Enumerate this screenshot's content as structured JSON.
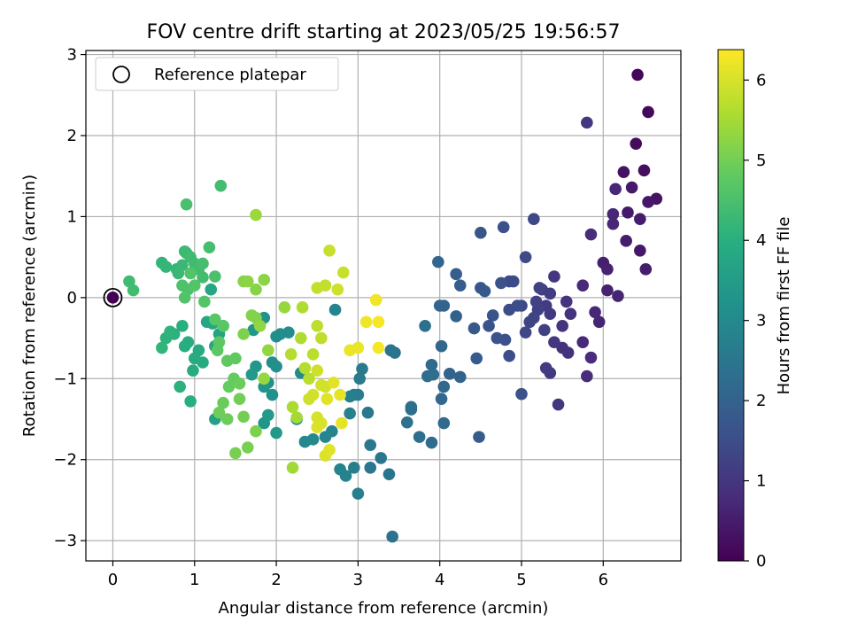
{
  "chart_data": {
    "type": "scatter",
    "title": "FOV centre drift starting at 2023/05/25 19:56:57",
    "xlabel": "Angular distance from reference (arcmin)",
    "ylabel": "Rotation from reference (arcmin)",
    "xlim": [
      -0.33,
      6.95
    ],
    "ylim": [
      -3.25,
      3.05
    ],
    "xticks": [
      0,
      1,
      2,
      3,
      4,
      5,
      6
    ],
    "yticks": [
      -3,
      -2,
      -1,
      0,
      1,
      2,
      3
    ],
    "grid": true,
    "legend": {
      "placement": "top-left",
      "entries": [
        "Reference platepar"
      ]
    },
    "colorbar": {
      "label": "Hours from first FF file",
      "range": [
        0,
        6.38
      ],
      "ticks": [
        0,
        1,
        2,
        3,
        4,
        5,
        6
      ],
      "colormap": "viridis"
    },
    "reference_point": {
      "x": 0,
      "y": 0,
      "label": "Reference platepar"
    },
    "points": [
      {
        "x": 0.0,
        "y": 0.0,
        "c": 0.0
      },
      {
        "x": 6.42,
        "y": 2.75,
        "c": 0.1
      },
      {
        "x": 6.55,
        "y": 2.29,
        "c": 0.15
      },
      {
        "x": 6.4,
        "y": 1.9,
        "c": 0.2
      },
      {
        "x": 6.5,
        "y": 1.57,
        "c": 0.25
      },
      {
        "x": 6.25,
        "y": 1.55,
        "c": 0.3
      },
      {
        "x": 6.65,
        "y": 1.22,
        "c": 0.35
      },
      {
        "x": 6.55,
        "y": 1.18,
        "c": 0.4
      },
      {
        "x": 6.35,
        "y": 1.36,
        "c": 0.45
      },
      {
        "x": 6.3,
        "y": 1.05,
        "c": 0.45
      },
      {
        "x": 6.45,
        "y": 0.97,
        "c": 0.5
      },
      {
        "x": 6.28,
        "y": 0.7,
        "c": 0.5
      },
      {
        "x": 6.45,
        "y": 0.58,
        "c": 0.4
      },
      {
        "x": 6.52,
        "y": 0.35,
        "c": 0.5
      },
      {
        "x": 6.0,
        "y": 0.43,
        "c": 0.55
      },
      {
        "x": 6.05,
        "y": 0.35,
        "c": 0.6
      },
      {
        "x": 6.05,
        "y": 0.09,
        "c": 0.6
      },
      {
        "x": 6.18,
        "y": 0.02,
        "c": 0.65
      },
      {
        "x": 5.95,
        "y": -0.3,
        "c": 0.65
      },
      {
        "x": 5.9,
        "y": -0.18,
        "c": 0.7
      },
      {
        "x": 5.75,
        "y": -0.55,
        "c": 0.75
      },
      {
        "x": 5.85,
        "y": -0.74,
        "c": 0.8
      },
      {
        "x": 5.75,
        "y": 0.15,
        "c": 0.75
      },
      {
        "x": 5.85,
        "y": 0.78,
        "c": 0.8
      },
      {
        "x": 5.8,
        "y": 2.16,
        "c": 1.0
      },
      {
        "x": 6.15,
        "y": 1.34,
        "c": 0.7
      },
      {
        "x": 5.8,
        "y": -0.97,
        "c": 0.8
      },
      {
        "x": 6.12,
        "y": 0.91,
        "c": 0.7
      },
      {
        "x": 6.12,
        "y": 1.03,
        "c": 0.7
      },
      {
        "x": 5.6,
        "y": -0.2,
        "c": 0.9
      },
      {
        "x": 5.57,
        "y": -0.68,
        "c": 0.9
      },
      {
        "x": 5.5,
        "y": -0.62,
        "c": 0.9
      },
      {
        "x": 5.45,
        "y": -1.32,
        "c": 1.0
      },
      {
        "x": 5.5,
        "y": -0.35,
        "c": 0.95
      },
      {
        "x": 5.55,
        "y": -0.05,
        "c": 0.95
      },
      {
        "x": 5.4,
        "y": 0.26,
        "c": 1.0
      },
      {
        "x": 5.4,
        "y": -0.55,
        "c": 1.0
      },
      {
        "x": 5.35,
        "y": -0.2,
        "c": 1.05
      },
      {
        "x": 5.35,
        "y": -0.93,
        "c": 1.05
      },
      {
        "x": 5.3,
        "y": -0.87,
        "c": 1.1
      },
      {
        "x": 5.3,
        "y": -0.1,
        "c": 1.1
      },
      {
        "x": 5.35,
        "y": 0.05,
        "c": 1.15
      },
      {
        "x": 5.25,
        "y": 0.1,
        "c": 1.15
      },
      {
        "x": 5.28,
        "y": -0.4,
        "c": 1.2
      },
      {
        "x": 5.2,
        "y": -0.15,
        "c": 1.2
      },
      {
        "x": 5.18,
        "y": -0.05,
        "c": 1.25
      },
      {
        "x": 5.22,
        "y": 0.12,
        "c": 1.25
      },
      {
        "x": 5.15,
        "y": -0.25,
        "c": 1.3
      },
      {
        "x": 5.1,
        "y": -0.3,
        "c": 1.3
      },
      {
        "x": 5.05,
        "y": -0.43,
        "c": 1.35
      },
      {
        "x": 5.15,
        "y": 0.97,
        "c": 1.35
      },
      {
        "x": 5.0,
        "y": -0.1,
        "c": 1.4
      },
      {
        "x": 5.05,
        "y": 0.5,
        "c": 1.4
      },
      {
        "x": 4.9,
        "y": 0.2,
        "c": 1.45
      },
      {
        "x": 4.85,
        "y": 0.2,
        "c": 1.45
      },
      {
        "x": 4.95,
        "y": -0.1,
        "c": 1.5
      },
      {
        "x": 4.85,
        "y": -0.15,
        "c": 1.5
      },
      {
        "x": 4.8,
        "y": -0.52,
        "c": 1.55
      },
      {
        "x": 4.78,
        "y": 0.87,
        "c": 1.55
      },
      {
        "x": 4.75,
        "y": 0.18,
        "c": 1.6
      },
      {
        "x": 4.7,
        "y": -0.5,
        "c": 1.6
      },
      {
        "x": 4.65,
        "y": -0.22,
        "c": 1.65
      },
      {
        "x": 4.6,
        "y": -0.35,
        "c": 1.65
      },
      {
        "x": 4.5,
        "y": 0.8,
        "c": 1.7
      },
      {
        "x": 4.5,
        "y": 0.12,
        "c": 1.7
      },
      {
        "x": 4.55,
        "y": 0.08,
        "c": 1.75
      },
      {
        "x": 4.45,
        "y": -0.75,
        "c": 1.8
      },
      {
        "x": 4.48,
        "y": -1.72,
        "c": 1.85
      },
      {
        "x": 5.0,
        "y": -1.19,
        "c": 1.6
      },
      {
        "x": 4.85,
        "y": -0.72,
        "c": 1.5
      },
      {
        "x": 4.42,
        "y": -0.38,
        "c": 1.75
      },
      {
        "x": 4.25,
        "y": 0.15,
        "c": 1.9
      },
      {
        "x": 4.2,
        "y": 0.29,
        "c": 1.9
      },
      {
        "x": 4.2,
        "y": -0.23,
        "c": 1.95
      },
      {
        "x": 4.25,
        "y": -0.98,
        "c": 2.0
      },
      {
        "x": 4.12,
        "y": -0.94,
        "c": 2.0
      },
      {
        "x": 4.05,
        "y": -0.1,
        "c": 2.05
      },
      {
        "x": 4.0,
        "y": -0.1,
        "c": 2.05
      },
      {
        "x": 3.98,
        "y": 0.44,
        "c": 2.1
      },
      {
        "x": 4.02,
        "y": -0.6,
        "c": 2.1
      },
      {
        "x": 4.05,
        "y": -1.1,
        "c": 2.15
      },
      {
        "x": 4.02,
        "y": -1.25,
        "c": 2.15
      },
      {
        "x": 4.05,
        "y": -1.55,
        "c": 2.2
      },
      {
        "x": 3.9,
        "y": -0.83,
        "c": 2.2
      },
      {
        "x": 3.9,
        "y": -1.79,
        "c": 2.25
      },
      {
        "x": 3.85,
        "y": -0.97,
        "c": 2.25
      },
      {
        "x": 3.82,
        "y": -0.35,
        "c": 2.3
      },
      {
        "x": 3.75,
        "y": -1.72,
        "c": 2.3
      },
      {
        "x": 3.92,
        "y": -0.95,
        "c": 2.3
      },
      {
        "x": 3.65,
        "y": -1.35,
        "c": 2.35
      },
      {
        "x": 3.65,
        "y": -1.38,
        "c": 2.35
      },
      {
        "x": 3.6,
        "y": -1.54,
        "c": 2.4
      },
      {
        "x": 3.45,
        "y": -0.68,
        "c": 2.4
      },
      {
        "x": 3.4,
        "y": -0.65,
        "c": 2.45
      },
      {
        "x": 3.42,
        "y": -2.95,
        "c": 2.4
      },
      {
        "x": 3.38,
        "y": -2.18,
        "c": 2.45
      },
      {
        "x": 3.28,
        "y": -1.98,
        "c": 2.5
      },
      {
        "x": 3.15,
        "y": -2.1,
        "c": 2.5
      },
      {
        "x": 3.15,
        "y": -1.82,
        "c": 2.55
      },
      {
        "x": 3.12,
        "y": -1.42,
        "c": 2.55
      },
      {
        "x": 3.05,
        "y": -0.88,
        "c": 2.6
      },
      {
        "x": 3.02,
        "y": -1.0,
        "c": 2.6
      },
      {
        "x": 3.0,
        "y": -1.2,
        "c": 2.65
      },
      {
        "x": 2.95,
        "y": -1.2,
        "c": 2.65
      },
      {
        "x": 3.0,
        "y": -2.42,
        "c": 2.7
      },
      {
        "x": 2.95,
        "y": -2.1,
        "c": 2.7
      },
      {
        "x": 2.9,
        "y": -1.22,
        "c": 2.75
      },
      {
        "x": 2.9,
        "y": -1.43,
        "c": 2.75
      },
      {
        "x": 2.85,
        "y": -2.2,
        "c": 2.8
      },
      {
        "x": 2.78,
        "y": -2.12,
        "c": 2.8
      },
      {
        "x": 2.68,
        "y": -1.65,
        "c": 2.85
      },
      {
        "x": 2.72,
        "y": -0.15,
        "c": 2.85
      },
      {
        "x": 2.6,
        "y": -1.72,
        "c": 2.9
      },
      {
        "x": 2.45,
        "y": -1.75,
        "c": 2.95
      },
      {
        "x": 2.35,
        "y": -1.78,
        "c": 2.95
      },
      {
        "x": 2.25,
        "y": -1.5,
        "c": 3.0
      },
      {
        "x": 2.3,
        "y": -0.93,
        "c": 3.0
      },
      {
        "x": 2.15,
        "y": -0.43,
        "c": 3.05
      },
      {
        "x": 2.05,
        "y": -0.45,
        "c": 3.1
      },
      {
        "x": 2.0,
        "y": -0.48,
        "c": 3.1
      },
      {
        "x": 1.95,
        "y": -0.8,
        "c": 3.15
      },
      {
        "x": 2.0,
        "y": -0.85,
        "c": 3.15
      },
      {
        "x": 1.95,
        "y": -1.2,
        "c": 3.2
      },
      {
        "x": 1.85,
        "y": -0.25,
        "c": 3.25
      },
      {
        "x": 1.9,
        "y": -1.05,
        "c": 3.2
      },
      {
        "x": 1.85,
        "y": -1.1,
        "c": 3.3
      },
      {
        "x": 1.85,
        "y": -1.55,
        "c": 3.3
      },
      {
        "x": 1.72,
        "y": -0.4,
        "c": 3.35
      },
      {
        "x": 1.75,
        "y": -0.85,
        "c": 3.35
      },
      {
        "x": 1.7,
        "y": -0.95,
        "c": 3.4
      },
      {
        "x": 1.9,
        "y": -1.45,
        "c": 3.4
      },
      {
        "x": 2.0,
        "y": -1.67,
        "c": 3.45
      },
      {
        "x": 1.25,
        "y": -1.5,
        "c": 3.6
      },
      {
        "x": 1.35,
        "y": -0.35,
        "c": 3.7
      },
      {
        "x": 1.3,
        "y": -0.45,
        "c": 3.7
      },
      {
        "x": 1.22,
        "y": -0.32,
        "c": 3.75
      },
      {
        "x": 1.25,
        "y": -0.6,
        "c": 3.75
      },
      {
        "x": 1.15,
        "y": -0.3,
        "c": 3.8
      },
      {
        "x": 1.2,
        "y": 0.1,
        "c": 3.8
      },
      {
        "x": 1.1,
        "y": -0.8,
        "c": 3.85
      },
      {
        "x": 1.05,
        "y": -0.65,
        "c": 3.85
      },
      {
        "x": 1.0,
        "y": -0.75,
        "c": 3.9
      },
      {
        "x": 0.98,
        "y": -0.9,
        "c": 3.9
      },
      {
        "x": 0.92,
        "y": -0.55,
        "c": 3.95
      },
      {
        "x": 0.88,
        "y": -0.6,
        "c": 3.95
      },
      {
        "x": 0.85,
        "y": -0.35,
        "c": 4.0
      },
      {
        "x": 0.95,
        "y": -1.28,
        "c": 4.0
      },
      {
        "x": 0.82,
        "y": -1.1,
        "c": 4.05
      },
      {
        "x": 0.75,
        "y": -0.45,
        "c": 4.05
      },
      {
        "x": 0.7,
        "y": -0.42,
        "c": 4.1
      },
      {
        "x": 0.65,
        "y": -0.5,
        "c": 4.1
      },
      {
        "x": 0.6,
        "y": -0.62,
        "c": 4.15
      },
      {
        "x": 0.6,
        "y": 0.43,
        "c": 4.15
      },
      {
        "x": 0.65,
        "y": 0.38,
        "c": 4.2
      },
      {
        "x": 0.78,
        "y": 0.35,
        "c": 4.2
      },
      {
        "x": 0.8,
        "y": 0.3,
        "c": 4.25
      },
      {
        "x": 0.85,
        "y": 0.4,
        "c": 4.25
      },
      {
        "x": 0.88,
        "y": 0.57,
        "c": 4.3
      },
      {
        "x": 0.9,
        "y": 0.55,
        "c": 4.3
      },
      {
        "x": 0.95,
        "y": 0.5,
        "c": 4.35
      },
      {
        "x": 1.0,
        "y": 0.42,
        "c": 4.35
      },
      {
        "x": 1.05,
        "y": 0.35,
        "c": 4.4
      },
      {
        "x": 1.1,
        "y": 0.25,
        "c": 4.4
      },
      {
        "x": 1.1,
        "y": 0.42,
        "c": 4.45
      },
      {
        "x": 1.18,
        "y": 0.62,
        "c": 4.45
      },
      {
        "x": 1.25,
        "y": 0.26,
        "c": 4.5
      },
      {
        "x": 0.9,
        "y": 1.15,
        "c": 4.5
      },
      {
        "x": 1.32,
        "y": 1.38,
        "c": 4.4
      },
      {
        "x": 0.2,
        "y": 0.2,
        "c": 4.35
      },
      {
        "x": 0.25,
        "y": 0.09,
        "c": 4.4
      },
      {
        "x": 0.85,
        "y": 0.15,
        "c": 4.55
      },
      {
        "x": 0.92,
        "y": 0.1,
        "c": 4.55
      },
      {
        "x": 0.88,
        "y": 0.0,
        "c": 4.6
      },
      {
        "x": 0.95,
        "y": 0.3,
        "c": 4.6
      },
      {
        "x": 1.0,
        "y": 0.15,
        "c": 4.65
      },
      {
        "x": 1.12,
        "y": -0.05,
        "c": 4.65
      },
      {
        "x": 1.25,
        "y": -0.27,
        "c": 4.7
      },
      {
        "x": 1.35,
        "y": -0.35,
        "c": 4.7
      },
      {
        "x": 1.28,
        "y": -0.65,
        "c": 4.75
      },
      {
        "x": 1.3,
        "y": -0.55,
        "c": 4.75
      },
      {
        "x": 1.4,
        "y": -0.78,
        "c": 4.8
      },
      {
        "x": 1.5,
        "y": -0.75,
        "c": 4.8
      },
      {
        "x": 1.42,
        "y": -1.1,
        "c": 4.85
      },
      {
        "x": 1.48,
        "y": -1.0,
        "c": 4.85
      },
      {
        "x": 1.55,
        "y": -1.06,
        "c": 4.9
      },
      {
        "x": 1.35,
        "y": -1.3,
        "c": 4.9
      },
      {
        "x": 1.4,
        "y": -1.5,
        "c": 4.95
      },
      {
        "x": 1.3,
        "y": -1.42,
        "c": 4.95
      },
      {
        "x": 1.55,
        "y": -1.25,
        "c": 5.0
      },
      {
        "x": 1.6,
        "y": -1.47,
        "c": 5.0
      },
      {
        "x": 1.5,
        "y": -1.92,
        "c": 5.05
      },
      {
        "x": 1.65,
        "y": -1.85,
        "c": 5.05
      },
      {
        "x": 1.75,
        "y": -1.65,
        "c": 5.1
      },
      {
        "x": 1.6,
        "y": -0.45,
        "c": 5.1
      },
      {
        "x": 1.7,
        "y": -0.22,
        "c": 5.15
      },
      {
        "x": 1.75,
        "y": -0.25,
        "c": 5.15
      },
      {
        "x": 1.75,
        "y": 0.1,
        "c": 5.2
      },
      {
        "x": 1.6,
        "y": 0.2,
        "c": 5.2
      },
      {
        "x": 1.65,
        "y": 0.2,
        "c": 5.25
      },
      {
        "x": 1.85,
        "y": 0.22,
        "c": 5.25
      },
      {
        "x": 1.8,
        "y": -0.35,
        "c": 5.3
      },
      {
        "x": 1.9,
        "y": -0.65,
        "c": 5.3
      },
      {
        "x": 1.85,
        "y": -1.0,
        "c": 5.35
      },
      {
        "x": 2.1,
        "y": -0.12,
        "c": 5.35
      },
      {
        "x": 1.75,
        "y": 1.02,
        "c": 5.4
      },
      {
        "x": 2.2,
        "y": -2.1,
        "c": 5.45
      },
      {
        "x": 2.25,
        "y": -1.48,
        "c": 5.5
      },
      {
        "x": 2.2,
        "y": -1.35,
        "c": 5.55
      },
      {
        "x": 2.3,
        "y": -0.5,
        "c": 5.6
      },
      {
        "x": 2.32,
        "y": -0.12,
        "c": 5.6
      },
      {
        "x": 2.18,
        "y": -0.7,
        "c": 5.65
      },
      {
        "x": 2.35,
        "y": -0.87,
        "c": 5.65
      },
      {
        "x": 2.4,
        "y": -1.0,
        "c": 5.7
      },
      {
        "x": 2.45,
        "y": -0.7,
        "c": 5.7
      },
      {
        "x": 2.5,
        "y": -0.35,
        "c": 5.75
      },
      {
        "x": 2.55,
        "y": -0.5,
        "c": 5.75
      },
      {
        "x": 2.5,
        "y": 0.12,
        "c": 5.8
      },
      {
        "x": 2.6,
        "y": 0.15,
        "c": 5.8
      },
      {
        "x": 2.65,
        "y": 0.58,
        "c": 5.85
      },
      {
        "x": 2.82,
        "y": 0.31,
        "c": 5.85
      },
      {
        "x": 2.75,
        "y": 0.1,
        "c": 5.9
      },
      {
        "x": 2.5,
        "y": -0.9,
        "c": 5.9
      },
      {
        "x": 2.55,
        "y": -1.08,
        "c": 5.95
      },
      {
        "x": 2.6,
        "y": -1.1,
        "c": 5.95
      },
      {
        "x": 2.5,
        "y": -1.48,
        "c": 6.0
      },
      {
        "x": 2.55,
        "y": -1.55,
        "c": 6.0
      },
      {
        "x": 2.5,
        "y": -1.6,
        "c": 6.05
      },
      {
        "x": 2.6,
        "y": -1.95,
        "c": 6.05
      },
      {
        "x": 2.65,
        "y": -1.88,
        "c": 6.1
      },
      {
        "x": 2.7,
        "y": -1.05,
        "c": 6.1
      },
      {
        "x": 2.62,
        "y": -1.25,
        "c": 6.1
      },
      {
        "x": 2.78,
        "y": -1.2,
        "c": 6.15
      },
      {
        "x": 2.8,
        "y": -1.55,
        "c": 6.15
      },
      {
        "x": 2.9,
        "y": -0.65,
        "c": 6.2
      },
      {
        "x": 3.0,
        "y": -0.62,
        "c": 6.2
      },
      {
        "x": 3.1,
        "y": -0.3,
        "c": 6.25
      },
      {
        "x": 3.22,
        "y": -0.03,
        "c": 6.25
      },
      {
        "x": 3.25,
        "y": -0.3,
        "c": 6.3
      },
      {
        "x": 3.25,
        "y": -0.62,
        "c": 6.3
      },
      {
        "x": 2.45,
        "y": -1.2,
        "c": 5.95
      },
      {
        "x": 2.4,
        "y": -1.25,
        "c": 5.9
      }
    ]
  }
}
